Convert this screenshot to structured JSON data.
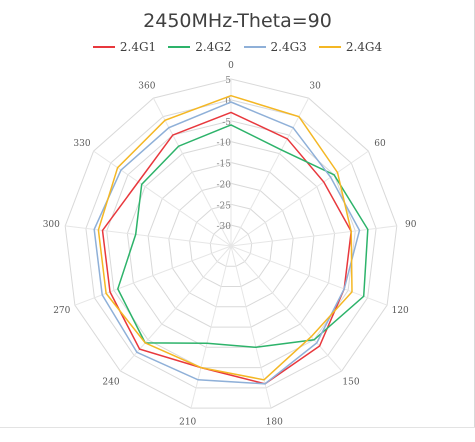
{
  "chart_data": {
    "type": "radar",
    "title": "2450MHz-Theta=90",
    "angle_labels": [
      "0",
      "30",
      "60",
      "90",
      "120",
      "150",
      "180",
      "210",
      "240",
      "270",
      "300",
      "330",
      "360"
    ],
    "radial_ticks": [
      5,
      0,
      -5,
      -10,
      -15,
      -20,
      -25,
      -30
    ],
    "rlim": [
      -35,
      5
    ],
    "angles_deg": [
      0,
      30,
      60,
      90,
      120,
      150,
      180,
      210,
      240,
      270,
      300,
      330,
      360
    ],
    "series": [
      {
        "name": "2.4G1",
        "color": "#e8383d",
        "values": [
          -3,
          -6,
          -8,
          -6,
          -6,
          -3,
          -1,
          -5,
          -2,
          -4,
          -4,
          -8,
          -5
        ]
      },
      {
        "name": "2.4G2",
        "color": "#2db36a",
        "values": [
          -6,
          -9,
          -5,
          -2,
          -1,
          -5,
          -10,
          -11,
          -4,
          -6,
          -12,
          -9,
          -8
        ]
      },
      {
        "name": "2.4G3",
        "color": "#8fb0d8",
        "values": [
          -0.5,
          -3,
          -6,
          -4,
          -6,
          -4,
          -1,
          -2,
          -1,
          -2,
          -2,
          -3,
          -3
        ]
      },
      {
        "name": "2.4G4",
        "color": "#f4b724",
        "values": [
          1,
          0,
          -4,
          -6,
          -4,
          -6,
          -2,
          -5,
          -4,
          -3,
          -3,
          -2,
          -1
        ]
      }
    ],
    "legend_position": "top",
    "grid": true
  }
}
